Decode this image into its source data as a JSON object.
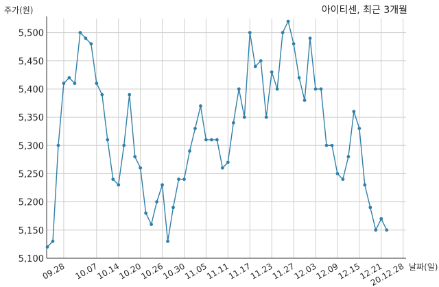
{
  "chart_data": {
    "type": "line",
    "title": "아이티센, 최근 3개월",
    "ylabel": "주가(원)",
    "xlabel": "날짜(일)",
    "ylim": [
      5100,
      5525
    ],
    "yticks": [
      5100,
      5150,
      5200,
      5250,
      5300,
      5350,
      5400,
      5450,
      5500
    ],
    "ytick_labels": [
      "5,100",
      "5,150",
      "5,200",
      "5,250",
      "5,300",
      "5,350",
      "5,400",
      "5,450",
      "5,500"
    ],
    "xtick_labels": [
      "09.28",
      "10.07",
      "10.14",
      "10.20",
      "10.26",
      "10.30",
      "11.05",
      "11.11",
      "11.17",
      "11.23",
      "11.27",
      "12.03",
      "12.09",
      "12.15",
      "12.21",
      "20.12.28"
    ],
    "xtick_index": [
      3,
      9,
      13,
      17,
      21,
      25,
      29,
      33,
      37,
      41,
      45,
      49,
      53,
      57,
      61,
      65
    ],
    "grid": true,
    "color": "#2f7fa8",
    "series": [
      {
        "values": [
          5120,
          5130,
          5300,
          5410,
          5420,
          5410,
          5500,
          5490,
          5480,
          5410,
          5390,
          5310,
          5240,
          5230,
          5300,
          5390,
          5280,
          5260,
          5180,
          5160,
          5200,
          5230,
          5130,
          5190,
          5240,
          5240,
          5290,
          5330,
          5370,
          5310,
          5310,
          5310,
          5260,
          5270,
          5340,
          5400,
          5350,
          5500,
          5440,
          5450,
          5350,
          5430,
          5400,
          5500,
          5520,
          5480,
          5420,
          5380,
          5490,
          5400,
          5400,
          5300,
          5300,
          5250,
          5240,
          5280,
          5360,
          5330,
          5230,
          5190,
          5150,
          5170,
          5150
        ]
      }
    ]
  }
}
